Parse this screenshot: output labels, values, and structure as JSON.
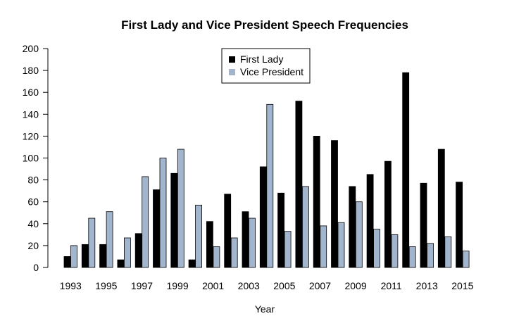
{
  "chart_data": {
    "type": "bar",
    "title": "First Lady and Vice President Speech Frequencies",
    "xlabel": "Year",
    "ylabel": "",
    "ylim": [
      0,
      200
    ],
    "yticks": [
      0,
      20,
      40,
      60,
      80,
      100,
      120,
      140,
      160,
      180,
      200
    ],
    "categories": [
      "1993",
      "1994",
      "1995",
      "1996",
      "1997",
      "1998",
      "1999",
      "2000",
      "2001",
      "2002",
      "2003",
      "2004",
      "2005",
      "2006",
      "2007",
      "2008",
      "2009",
      "2010",
      "2011",
      "2012",
      "2013",
      "2014",
      "2015"
    ],
    "xtick_labels": [
      "1993",
      "1995",
      "1997",
      "1999",
      "2001",
      "2003",
      "2005",
      "2007",
      "2009",
      "2011",
      "2013",
      "2015"
    ],
    "series": [
      {
        "name": "First Lady",
        "color": "#000000",
        "values": [
          10,
          21,
          21,
          7,
          31,
          71,
          86,
          7,
          42,
          67,
          51,
          92,
          68,
          152,
          120,
          116,
          74,
          85,
          97,
          178,
          77,
          108,
          78
        ]
      },
      {
        "name": "Vice President",
        "color": "#a3b5cd",
        "values": [
          20,
          45,
          51,
          27,
          83,
          100,
          108,
          57,
          19,
          27,
          45,
          149,
          33,
          74,
          38,
          41,
          60,
          35,
          30,
          19,
          22,
          28,
          15
        ]
      }
    ],
    "legend": {
      "position": "top-center"
    },
    "grid": false
  }
}
